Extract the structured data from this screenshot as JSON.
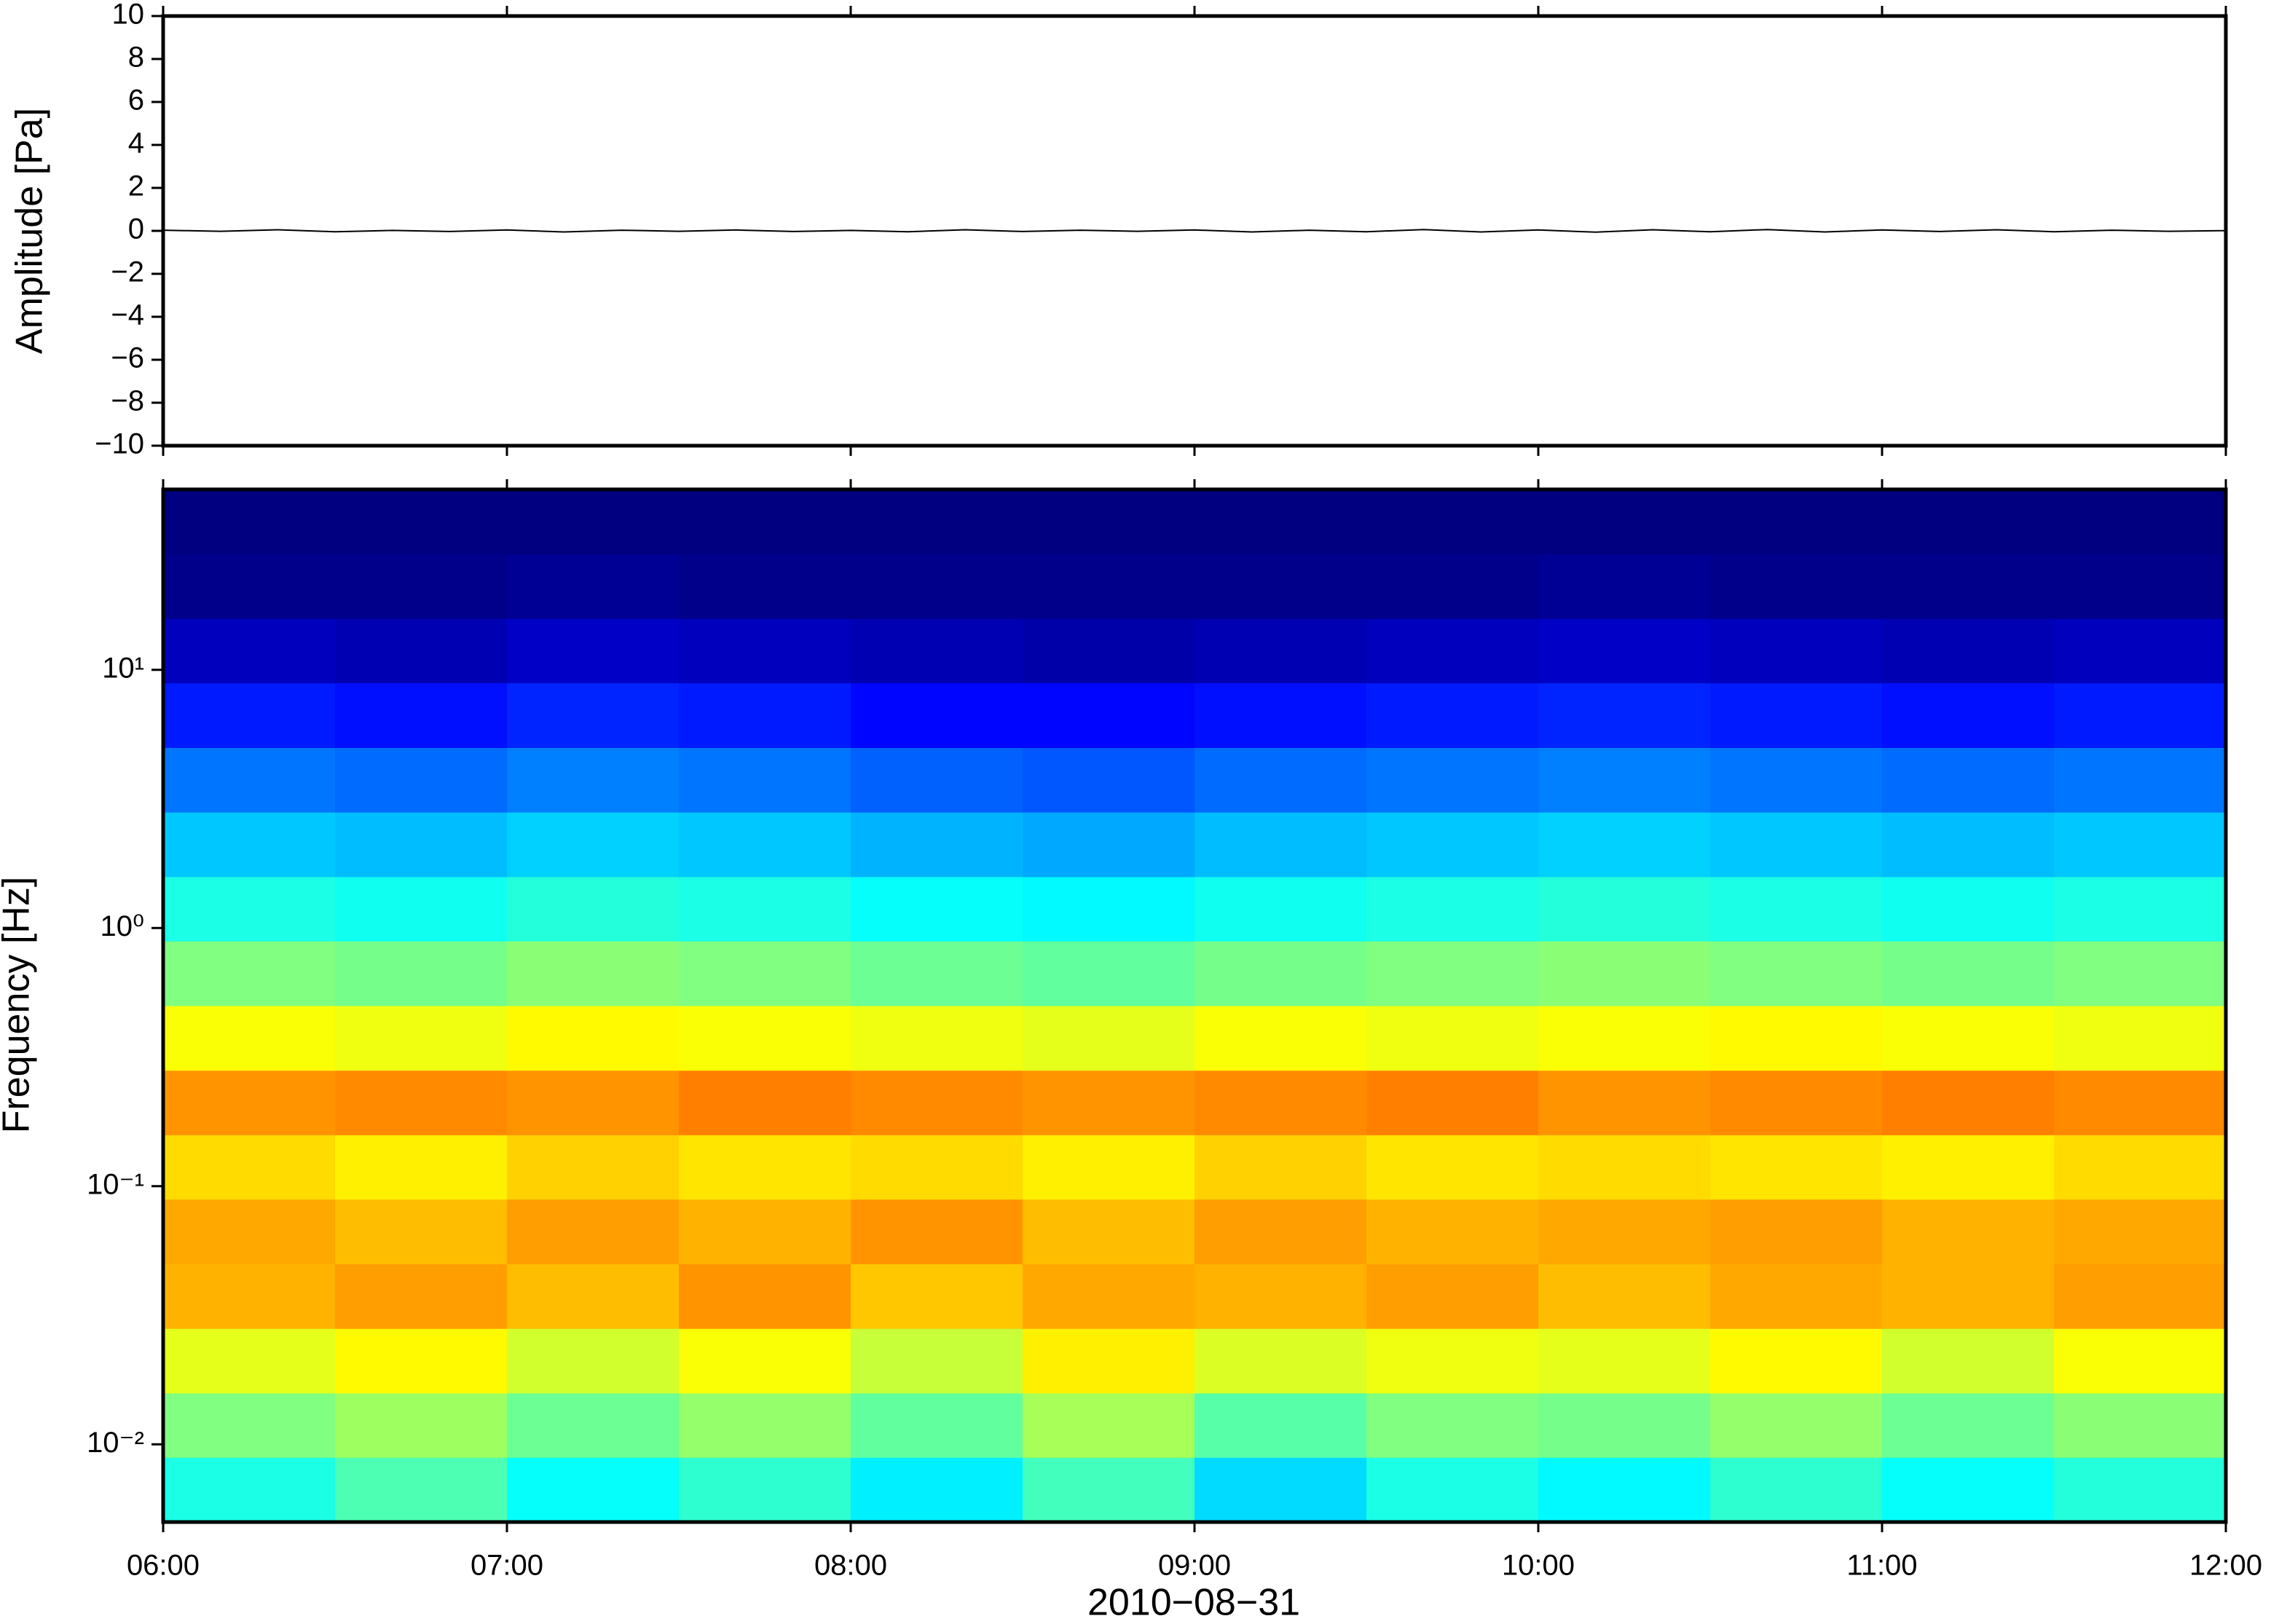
{
  "chart_data": [
    {
      "type": "line",
      "ylabel": "Amplitude [Pa]",
      "x": [
        "06:00",
        "06:10",
        "06:20",
        "06:30",
        "06:40",
        "06:50",
        "07:00",
        "07:10",
        "07:20",
        "07:30",
        "07:40",
        "07:50",
        "08:00",
        "08:10",
        "08:20",
        "08:30",
        "08:40",
        "08:50",
        "09:00",
        "09:10",
        "09:20",
        "09:30",
        "09:40",
        "09:50",
        "10:00",
        "10:10",
        "10:20",
        "10:30",
        "10:40",
        "10:50",
        "11:00",
        "11:10",
        "11:20",
        "11:30",
        "11:40",
        "11:50",
        "12:00"
      ],
      "series": [
        {
          "color": "#000000",
          "values": [
            0.03,
            -0.02,
            0.05,
            -0.04,
            0.02,
            -0.03,
            0.04,
            -0.05,
            0.03,
            -0.02,
            0.04,
            -0.03,
            0.02,
            -0.04,
            0.05,
            -0.03,
            0.03,
            -0.02,
            0.04,
            -0.05,
            0.03,
            -0.04,
            0.06,
            -0.05,
            0.04,
            -0.06,
            0.05,
            -0.04,
            0.06,
            -0.05,
            0.04,
            -0.03,
            0.05,
            -0.04,
            0.03,
            -0.02,
            0.01
          ]
        }
      ],
      "xlim": [
        "06:00",
        "12:00"
      ],
      "xticks": [
        "06:00",
        "07:00",
        "08:00",
        "09:00",
        "10:00",
        "11:00",
        "12:00"
      ],
      "ylim": [
        -10,
        10
      ],
      "yticks": [
        {
          "value": -10,
          "label": "−10"
        },
        {
          "value": -8,
          "label": "−8"
        },
        {
          "value": -6,
          "label": "−6"
        },
        {
          "value": -4,
          "label": "−4"
        },
        {
          "value": -2,
          "label": "−2"
        },
        0,
        2,
        4,
        6,
        8,
        10
      ]
    },
    {
      "type": "heatmap",
      "ylabel": "Frequency [Hz]",
      "xlabel": "2010−08−31",
      "colormap": "jet",
      "zlim": [
        0,
        100
      ],
      "log_y": true,
      "x_edges": [
        "06:00",
        "06:30",
        "07:00",
        "07:30",
        "08:00",
        "08:30",
        "09:00",
        "09:30",
        "10:00",
        "10:30",
        "11:00",
        "11:30",
        "12:00"
      ],
      "y_edges": [
        0.005,
        0.0089,
        0.0158,
        0.0281,
        0.05,
        0.089,
        0.158,
        0.281,
        0.5,
        0.89,
        1.58,
        2.81,
        5,
        8.9,
        15.8,
        28.1,
        50
      ],
      "z": [
        [
          40,
          45,
          38,
          42,
          36,
          44,
          34,
          40,
          37,
          42,
          38,
          41
        ],
        [
          50,
          53,
          48,
          52,
          47,
          54,
          46,
          50,
          49,
          52,
          48,
          51
        ],
        [
          60,
          63,
          58,
          62,
          57,
          64,
          59,
          61,
          60,
          63,
          58,
          62
        ],
        [
          70,
          72,
          69,
          73,
          68,
          71,
          70,
          72,
          69,
          71,
          70,
          72
        ],
        [
          71,
          69,
          72,
          70,
          73,
          69,
          72,
          70,
          71,
          72,
          70,
          71
        ],
        [
          66,
          64,
          67,
          65,
          66,
          64,
          67,
          65,
          66,
          65,
          64,
          66
        ],
        [
          73,
          74,
          73,
          75,
          74,
          73,
          74,
          75,
          73,
          74,
          75,
          74
        ],
        [
          62,
          61,
          63,
          62,
          61,
          60,
          62,
          61,
          62,
          63,
          62,
          61
        ],
        [
          50,
          49,
          51,
          50,
          48,
          47,
          49,
          50,
          51,
          50,
          49,
          50
        ],
        [
          40,
          39,
          41,
          40,
          38,
          37,
          39,
          40,
          41,
          40,
          39,
          40
        ],
        [
          32,
          31,
          33,
          32,
          30,
          29,
          31,
          32,
          33,
          32,
          31,
          32
        ],
        [
          24,
          23,
          25,
          24,
          22,
          21,
          23,
          24,
          25,
          24,
          23,
          24
        ],
        [
          15,
          14,
          16,
          15,
          13,
          13,
          14,
          15,
          16,
          15,
          14,
          15
        ],
        [
          6,
          5,
          7,
          6,
          5,
          4,
          5,
          6,
          7,
          6,
          5,
          6
        ],
        [
          1,
          1,
          2,
          1,
          1,
          1,
          1,
          1,
          2,
          1,
          1,
          1
        ],
        [
          0,
          0,
          0,
          0,
          0,
          0,
          0,
          0,
          0,
          0,
          0,
          0
        ]
      ],
      "xlim": [
        "06:00",
        "12:00"
      ],
      "xticks": [
        "06:00",
        "07:00",
        "08:00",
        "09:00",
        "10:00",
        "11:00",
        "12:00"
      ],
      "ylim": [
        0.005,
        50
      ],
      "yticks": [
        {
          "value": 0.01,
          "label": "10⁻²"
        },
        {
          "value": 0.1,
          "label": "10⁻¹"
        },
        {
          "value": 1,
          "label": "10⁰"
        },
        {
          "value": 10,
          "label": "10¹"
        }
      ]
    }
  ]
}
